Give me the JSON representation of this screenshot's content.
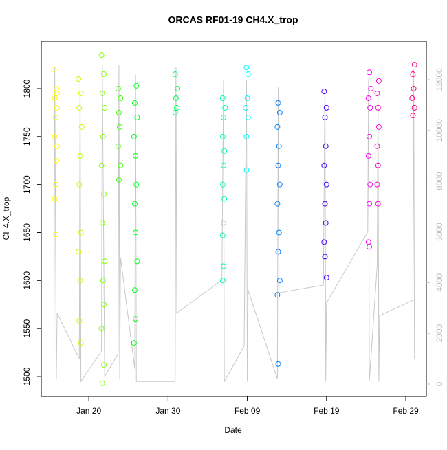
{
  "chart_data": {
    "type": "scatter",
    "title": "ORCAS RF01-19 CH4.X_trop",
    "x_label": "Date",
    "y_label": "CH4.X_trop",
    "xlim": [
      14,
      62.6
    ],
    "xticks": [
      {
        "value": 20,
        "label": "Jan 20"
      },
      {
        "value": 30,
        "label": "Jan 30"
      },
      {
        "value": 40,
        "label": "Feb 09"
      },
      {
        "value": 50,
        "label": "Feb 19"
      },
      {
        "value": 60,
        "label": "Feb 29"
      }
    ],
    "ylim": [
      1479.2,
      1849.4
    ],
    "yticks": [
      1500,
      1550,
      1600,
      1650,
      1700,
      1750,
      1800
    ],
    "y2lim": [
      -488,
      13517
    ],
    "y2ticks": [
      0,
      2000,
      4000,
      6000,
      8000,
      10000,
      12000
    ],
    "y2_color": "#bebebe",
    "series": [
      {
        "type": "line",
        "axis": "y2",
        "color": "#c8c8c8",
        "x": [
          15.6,
          15.7,
          15.9,
          16.0,
          18.8,
          18.9,
          19.0,
          21.6,
          21.7,
          22.0,
          23.7,
          23.8,
          23.9,
          24.0,
          25.8,
          25.9,
          26.0,
          30.9,
          31.0,
          31.1,
          36.8,
          37.0,
          37.1,
          39.6,
          39.9,
          40.0,
          40.1,
          43.8,
          43.9,
          44.0,
          49.6,
          49.8,
          49.9,
          50.0,
          55.2,
          55.3,
          55.4,
          56.4,
          56.5,
          56.6,
          56.7,
          60.9,
          61.0,
          61.1
        ],
        "values": [
          0,
          12500,
          200,
          2800,
          1000,
          12500,
          100,
          1300,
          12600,
          300,
          1200,
          12600,
          200,
          5000,
          600,
          12200,
          100,
          100,
          12500,
          2800,
          4100,
          12000,
          100,
          1500,
          12000,
          100,
          3700,
          200,
          11700,
          3600,
          3900,
          12000,
          100,
          3200,
          6000,
          12000,
          100,
          4700,
          11500,
          100,
          2700,
          3300,
          12400,
          1000
        ]
      },
      {
        "type": "scatter",
        "color": "#ffff00",
        "x": [
          15.6,
          15.9,
          15.7,
          16.0,
          15.8,
          15.7,
          16.0,
          15.9,
          15.8,
          15.7,
          15.8,
          16.0
        ],
        "values": [
          1820,
          1800,
          1790,
          1780,
          1770,
          1750,
          1740,
          1725,
          1700,
          1685,
          1648,
          1795
        ]
      },
      {
        "type": "scatter",
        "color": "#c0ff00",
        "x": [
          18.7,
          19.0,
          18.8,
          19.1,
          18.9,
          18.8,
          19.0,
          18.7,
          18.9,
          18.8,
          19.0
        ],
        "values": [
          1810,
          1795,
          1780,
          1760,
          1730,
          1700,
          1650,
          1630,
          1600,
          1558,
          1535
        ]
      },
      {
        "type": "scatter",
        "color": "#80ff00",
        "x": [
          21.6,
          21.9,
          21.7,
          22.0,
          21.8,
          21.6,
          21.9,
          21.7,
          22.0,
          21.8,
          21.9,
          21.6,
          21.9,
          21.7
        ],
        "values": [
          1835,
          1815,
          1795,
          1780,
          1750,
          1720,
          1690,
          1660,
          1620,
          1600,
          1575,
          1550,
          1512,
          1493
        ]
      },
      {
        "type": "scatter",
        "color": "#40ff00",
        "x": [
          23.7,
          24.0,
          23.8,
          23.9,
          23.7,
          24.0,
          23.8
        ],
        "values": [
          1800,
          1790,
          1775,
          1760,
          1740,
          1720,
          1705
        ]
      },
      {
        "type": "scatter",
        "color": "#00ff20",
        "x": [
          26.0,
          25.8,
          26.1,
          25.7,
          25.9,
          26.0,
          25.8,
          25.9,
          26.1,
          25.8,
          25.9,
          25.7
        ],
        "values": [
          1803,
          1785,
          1770,
          1750,
          1730,
          1700,
          1680,
          1650,
          1620,
          1590,
          1560,
          1535
        ]
      },
      {
        "type": "scatter",
        "color": "#00ff60",
        "x": [
          30.9,
          31.2,
          31.0,
          31.1,
          30.9
        ],
        "values": [
          1815,
          1800,
          1790,
          1780,
          1775
        ]
      },
      {
        "type": "scatter",
        "color": "#00ffb0",
        "x": [
          36.9,
          37.2,
          37.0,
          36.9,
          37.1,
          37.0,
          36.9,
          37.1,
          37.0,
          36.9,
          37.0,
          36.9
        ],
        "values": [
          1790,
          1780,
          1770,
          1750,
          1735,
          1720,
          1700,
          1685,
          1660,
          1647,
          1615,
          1600
        ]
      },
      {
        "type": "scatter",
        "color": "#00ffff",
        "x": [
          39.9,
          40.1,
          40.0,
          39.8,
          40.1,
          39.9,
          39.9
        ],
        "values": [
          1822,
          1815,
          1790,
          1780,
          1770,
          1750,
          1715
        ]
      },
      {
        "type": "scatter",
        "color": "#0080ff",
        "x": [
          43.9,
          44.1,
          43.8,
          44.0,
          43.9,
          44.1,
          43.8,
          44.0,
          43.9,
          44.1,
          43.8,
          43.9
        ],
        "values": [
          1785,
          1775,
          1760,
          1740,
          1720,
          1700,
          1680,
          1650,
          1630,
          1600,
          1585,
          1513
        ]
      },
      {
        "type": "scatter",
        "color": "#4000ff",
        "x": [
          49.7,
          50.0,
          49.8,
          49.9,
          49.7,
          50.0,
          49.8,
          49.9,
          49.7,
          49.8,
          50.0
        ],
        "values": [
          1797,
          1780,
          1770,
          1740,
          1720,
          1700,
          1680,
          1660,
          1640,
          1625,
          1603
        ]
      },
      {
        "type": "scatter",
        "color": "#ff00ff",
        "x": [
          55.4,
          55.6,
          55.3,
          55.5,
          55.4,
          55.3,
          55.5,
          55.4,
          55.3,
          55.4
        ],
        "values": [
          1817,
          1800,
          1790,
          1780,
          1750,
          1730,
          1700,
          1680,
          1640,
          1635
        ]
      },
      {
        "type": "scatter",
        "color": "#ff00c0",
        "x": [
          56.6,
          56.4,
          56.5,
          56.6,
          56.4,
          56.5,
          56.4,
          56.5
        ],
        "values": [
          1808,
          1795,
          1780,
          1760,
          1740,
          1720,
          1700,
          1680
        ]
      },
      {
        "type": "scatter",
        "color": "#ff0080",
        "x": [
          61.1,
          60.9,
          61.0,
          60.8,
          61.1,
          60.9
        ],
        "values": [
          1825,
          1815,
          1800,
          1790,
          1780,
          1772
        ]
      }
    ]
  }
}
